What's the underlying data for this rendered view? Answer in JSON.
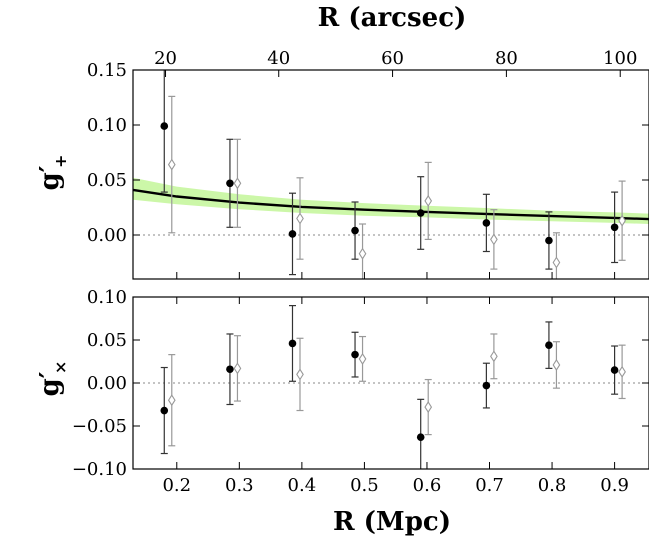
{
  "chart_data": [
    {
      "type": "scatter",
      "panel": "top",
      "xlabel": "R (Mpc)",
      "x2label": "R (arcsec)",
      "ylabel_main": "g′",
      "ylabel_sub": "+",
      "xlim": [
        0.13,
        0.955
      ],
      "ylim": [
        -0.04,
        0.15
      ],
      "x_ticks": [
        0.2,
        0.3,
        0.4,
        0.5,
        0.6,
        0.7,
        0.8,
        0.9
      ],
      "x2_ticks": [
        20,
        40,
        60,
        80,
        100
      ],
      "x2_tick_positions_mpc": [
        0.182,
        0.363,
        0.545,
        0.727,
        0.909
      ],
      "y_ticks": [
        0.0,
        0.05,
        0.1,
        0.15
      ],
      "y_tick_labels": [
        "0.00",
        "0.05",
        "0.10",
        "0.15"
      ],
      "grid": false,
      "zero_line": true,
      "series": [
        {
          "marker": "filled-circle",
          "color": "#000000",
          "x": [
            0.18,
            0.285,
            0.385,
            0.485,
            0.59,
            0.695,
            0.795,
            0.9
          ],
          "y": [
            0.099,
            0.047,
            0.001,
            0.004,
            0.02,
            0.011,
            -0.005,
            0.007
          ],
          "err": [
            0.06,
            0.04,
            0.037,
            0.026,
            0.033,
            0.026,
            0.026,
            0.032
          ]
        },
        {
          "marker": "open-diamond",
          "color": "#999999",
          "x": [
            0.192,
            0.297,
            0.397,
            0.497,
            0.602,
            0.707,
            0.807,
            0.912
          ],
          "y": [
            0.064,
            0.047,
            0.015,
            -0.017,
            0.031,
            -0.004,
            -0.025,
            0.013
          ],
          "err": [
            0.062,
            0.04,
            0.037,
            0.027,
            0.035,
            0.027,
            0.027,
            0.036
          ]
        }
      ],
      "model": {
        "x": [
          0.13,
          0.2,
          0.3,
          0.4,
          0.5,
          0.6,
          0.7,
          0.8,
          0.9,
          0.955
        ],
        "y": [
          0.041,
          0.035,
          0.0295,
          0.0255,
          0.023,
          0.021,
          0.019,
          0.0172,
          0.0155,
          0.0145
        ],
        "band_upper": [
          0.052,
          0.044,
          0.037,
          0.032,
          0.029,
          0.0265,
          0.0245,
          0.022,
          0.0205,
          0.0195
        ],
        "band_lower": [
          0.032,
          0.028,
          0.0235,
          0.02,
          0.0175,
          0.016,
          0.014,
          0.0125,
          0.011,
          0.01
        ],
        "line_color": "#000000",
        "band_color": "#ccf7a8"
      }
    },
    {
      "type": "scatter",
      "panel": "bottom",
      "xlabel": "R (Mpc)",
      "ylabel_main": "g′",
      "ylabel_sub": "×",
      "xlim": [
        0.13,
        0.955
      ],
      "ylim": [
        -0.1,
        0.1
      ],
      "x_ticks": [
        0.2,
        0.3,
        0.4,
        0.5,
        0.6,
        0.7,
        0.8,
        0.9
      ],
      "x_tick_labels": [
        "0.2",
        "0.3",
        "0.4",
        "0.5",
        "0.6",
        "0.7",
        "0.8",
        "0.9"
      ],
      "y_ticks": [
        -0.1,
        -0.05,
        0.0,
        0.05,
        0.1
      ],
      "y_tick_labels": [
        "−0.10",
        "−0.05",
        "0.00",
        "0.05",
        "0.10"
      ],
      "grid": false,
      "zero_line": true,
      "series": [
        {
          "marker": "filled-circle",
          "color": "#000000",
          "x": [
            0.18,
            0.285,
            0.385,
            0.485,
            0.59,
            0.695,
            0.795,
            0.9
          ],
          "y": [
            -0.032,
            0.016,
            0.046,
            0.033,
            -0.063,
            -0.003,
            0.044,
            0.015
          ],
          "err": [
            0.05,
            0.041,
            0.044,
            0.026,
            0.044,
            0.026,
            0.027,
            0.028
          ]
        },
        {
          "marker": "open-diamond",
          "color": "#999999",
          "x": [
            0.192,
            0.297,
            0.397,
            0.497,
            0.602,
            0.707,
            0.807,
            0.912
          ],
          "y": [
            -0.02,
            0.017,
            0.01,
            0.028,
            -0.028,
            0.031,
            0.021,
            0.013
          ],
          "err": [
            0.053,
            0.038,
            0.042,
            0.026,
            0.032,
            0.026,
            0.027,
            0.031
          ]
        }
      ]
    }
  ]
}
